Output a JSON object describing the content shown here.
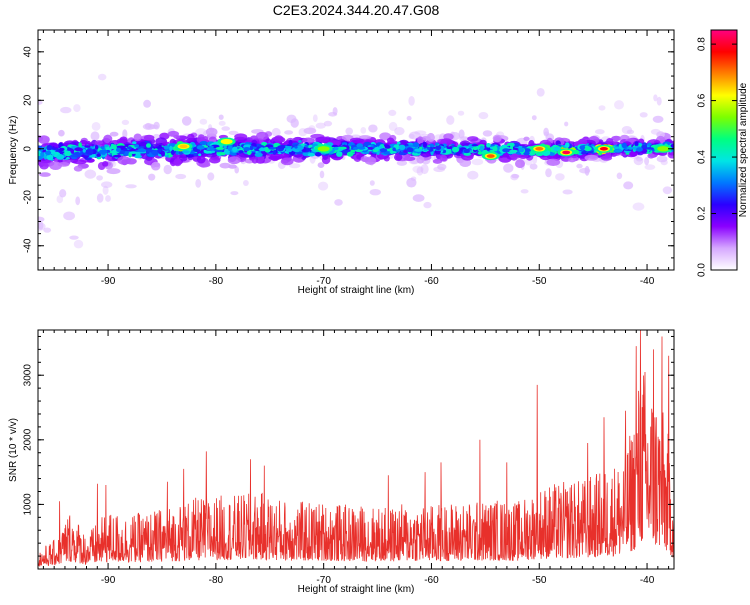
{
  "figure_title": "C2E3.2024.344.20.47.G08",
  "chart_data": [
    {
      "type": "heatmap",
      "title": "C2E3.2024.344.20.47.G08",
      "xlabel": "Height of straight line (km)",
      "ylabel": "Frequency (Hz)",
      "xlim": [
        -96.5,
        -37.5
      ],
      "ylim": [
        -50,
        49
      ],
      "x_ticks": [
        -90,
        -80,
        -70,
        -60,
        -50,
        -40
      ],
      "x_tick_labels": [
        "-90",
        "-80",
        "-70",
        "-60",
        "-50",
        "-40"
      ],
      "y_ticks": [
        -40,
        -20,
        0,
        20,
        40
      ],
      "y_tick_labels": [
        "-40",
        "-20",
        "0",
        "20",
        "40"
      ],
      "colorbar": {
        "label": "Normalized spectral amplitude",
        "range": [
          0,
          0.85
        ],
        "ticks": [
          0.0,
          0.2,
          0.4,
          0.6,
          0.8
        ],
        "tick_labels": [
          "0.0",
          "0.2",
          "0.4",
          "0.6",
          "0.8"
        ],
        "colors": [
          "#ffffff",
          "#d6a8ff",
          "#8a00ff",
          "#2b00ff",
          "#0078ff",
          "#00e5e5",
          "#00ff80",
          "#7cff00",
          "#ffff00",
          "#ff8000",
          "#ff0000",
          "#ff0080"
        ]
      },
      "band": {
        "center_frequency_hz": [
          [
            -96.5,
            -1.5
          ],
          [
            -80,
            0
          ],
          [
            -60,
            0
          ],
          [
            -50,
            -0.5
          ],
          [
            -37.5,
            0.5
          ]
        ],
        "half_width_hz": [
          [
            -96.5,
            6
          ],
          [
            -80,
            5.5
          ],
          [
            -60,
            4
          ],
          [
            -37.5,
            3.5
          ]
        ],
        "peaks": [
          {
            "x": -83.0,
            "y": 1.0,
            "amp": 0.65
          },
          {
            "x": -79.0,
            "y": 3.0,
            "amp": 0.62
          },
          {
            "x": -70.0,
            "y": 0.0,
            "amp": 0.55
          },
          {
            "x": -54.5,
            "y": -3.0,
            "amp": 0.72
          },
          {
            "x": -50.0,
            "y": 0.0,
            "amp": 0.7
          },
          {
            "x": -47.5,
            "y": -1.5,
            "amp": 0.82
          },
          {
            "x": -44.0,
            "y": 0.0,
            "amp": 0.78
          },
          {
            "x": -38.5,
            "y": 0.0,
            "amp": 0.55
          }
        ]
      },
      "grid": false,
      "legend": "colorbar-right"
    },
    {
      "type": "line",
      "xlabel": "Height of straight line (km)",
      "ylabel": "SNR (10 * v/v)",
      "xlim": [
        -96.5,
        -37.5
      ],
      "ylim": [
        0,
        3700
      ],
      "x_ticks": [
        -90,
        -80,
        -70,
        -60,
        -50,
        -40
      ],
      "x_tick_labels": [
        "-90",
        "-80",
        "-70",
        "-60",
        "-50",
        "-40"
      ],
      "y_ticks": [
        1000,
        2000,
        3000
      ],
      "y_tick_labels": [
        "1000",
        "2000",
        "3000"
      ],
      "series": [
        {
          "color": "#e8302b",
          "envelope_x": [
            -96.5,
            -95,
            -93.5,
            -92,
            -90,
            -88,
            -86,
            -84,
            -82,
            -80,
            -78,
            -76,
            -74,
            -72,
            -70,
            -68,
            -66,
            -64,
            -62,
            -60,
            -58,
            -56,
            -54,
            -52,
            -50,
            -48,
            -46,
            -44,
            -42,
            -41,
            -40.5,
            -40,
            -39,
            -38,
            -37.5
          ],
          "envelope_y": [
            300,
            450,
            950,
            550,
            900,
            850,
            900,
            1000,
            1100,
            1150,
            1150,
            1200,
            1100,
            1050,
            1050,
            1000,
            1000,
            950,
            1050,
            1000,
            1050,
            1050,
            1100,
            1050,
            1300,
            1350,
            1400,
            1550,
            1800,
            2600,
            3400,
            3000,
            2800,
            2100,
            1300
          ],
          "spikes": [
            {
              "x": -94.5,
              "y": 1050
            },
            {
              "x": -91.0,
              "y": 1320
            },
            {
              "x": -90.2,
              "y": 1300
            },
            {
              "x": -84.5,
              "y": 1350
            },
            {
              "x": -83.0,
              "y": 1550
            },
            {
              "x": -80.9,
              "y": 1820
            },
            {
              "x": -76.8,
              "y": 1700
            },
            {
              "x": -75.5,
              "y": 1600
            },
            {
              "x": -64.0,
              "y": 1450
            },
            {
              "x": -60.6,
              "y": 1500
            },
            {
              "x": -59.1,
              "y": 1650
            },
            {
              "x": -55.5,
              "y": 2000
            },
            {
              "x": -53.0,
              "y": 1650
            },
            {
              "x": -50.2,
              "y": 2850
            },
            {
              "x": -47.0,
              "y": 1300
            },
            {
              "x": -45.5,
              "y": 1950
            },
            {
              "x": -44.0,
              "y": 2350
            },
            {
              "x": -42.0,
              "y": 2450
            },
            {
              "x": -41.0,
              "y": 3450
            },
            {
              "x": -40.6,
              "y": 3700
            },
            {
              "x": -40.2,
              "y": 3050
            },
            {
              "x": -39.4,
              "y": 3400
            },
            {
              "x": -38.6,
              "y": 3600
            },
            {
              "x": -38.0,
              "y": 3300
            }
          ]
        }
      ],
      "grid": false
    }
  ]
}
